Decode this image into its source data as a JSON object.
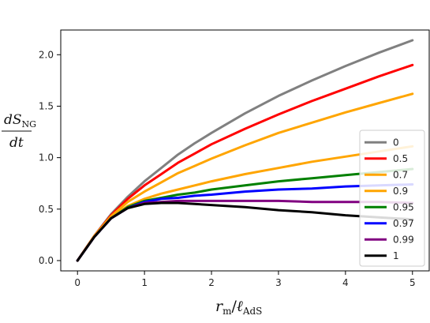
{
  "chart_data": {
    "type": "line",
    "title": "",
    "xlabel": "r_m/ℓ_AdS",
    "ylabel": "dS_NG/dt",
    "xlim": [
      -0.25,
      5.25
    ],
    "ylim": [
      -0.1,
      2.24
    ],
    "x_ticks": [
      "0",
      "1",
      "2",
      "3",
      "4",
      "5"
    ],
    "y_ticks": [
      "0.0",
      "0.5",
      "1.0",
      "1.5",
      "2.0"
    ],
    "grid": false,
    "legend_position": "lower-right",
    "x": [
      0,
      0.25,
      0.5,
      0.75,
      1,
      1.25,
      1.5,
      1.75,
      2,
      2.5,
      3,
      3.5,
      4,
      4.5,
      5
    ],
    "series": [
      {
        "name": "0",
        "color": "#808080",
        "values": [
          0,
          0.24,
          0.45,
          0.62,
          0.77,
          0.9,
          1.03,
          1.14,
          1.24,
          1.43,
          1.6,
          1.75,
          1.89,
          2.02,
          2.14
        ]
      },
      {
        "name": "0.5",
        "color": "#ff0000",
        "values": [
          0,
          0.24,
          0.44,
          0.6,
          0.73,
          0.84,
          0.95,
          1.04,
          1.13,
          1.28,
          1.42,
          1.55,
          1.67,
          1.79,
          1.9
        ]
      },
      {
        "name": "0.7",
        "color": "#ffa500",
        "values": [
          0,
          0.24,
          0.43,
          0.57,
          0.67,
          0.76,
          0.85,
          0.92,
          0.99,
          1.12,
          1.24,
          1.34,
          1.44,
          1.53,
          1.62
        ]
      },
      {
        "name": "0.9",
        "color": "#ffa500",
        "values": [
          0,
          0.23,
          0.42,
          0.53,
          0.6,
          0.65,
          0.69,
          0.73,
          0.77,
          0.84,
          0.9,
          0.96,
          1.01,
          1.06,
          1.11
        ]
      },
      {
        "name": "0.95",
        "color": "#008000",
        "values": [
          0,
          0.23,
          0.41,
          0.52,
          0.58,
          0.61,
          0.64,
          0.66,
          0.69,
          0.73,
          0.77,
          0.8,
          0.83,
          0.86,
          0.89
        ]
      },
      {
        "name": "0.97",
        "color": "#0000ff",
        "values": [
          0,
          0.23,
          0.41,
          0.51,
          0.57,
          0.6,
          0.61,
          0.63,
          0.64,
          0.67,
          0.69,
          0.7,
          0.72,
          0.73,
          0.74
        ]
      },
      {
        "name": "0.99",
        "color": "#800080",
        "values": [
          0,
          0.23,
          0.41,
          0.51,
          0.56,
          0.57,
          0.58,
          0.58,
          0.58,
          0.58,
          0.58,
          0.57,
          0.57,
          0.57,
          0.56
        ]
      },
      {
        "name": "1",
        "color": "#000000",
        "values": [
          0,
          0.23,
          0.41,
          0.51,
          0.55,
          0.56,
          0.56,
          0.55,
          0.54,
          0.52,
          0.49,
          0.47,
          0.44,
          0.42,
          0.4
        ]
      }
    ]
  }
}
